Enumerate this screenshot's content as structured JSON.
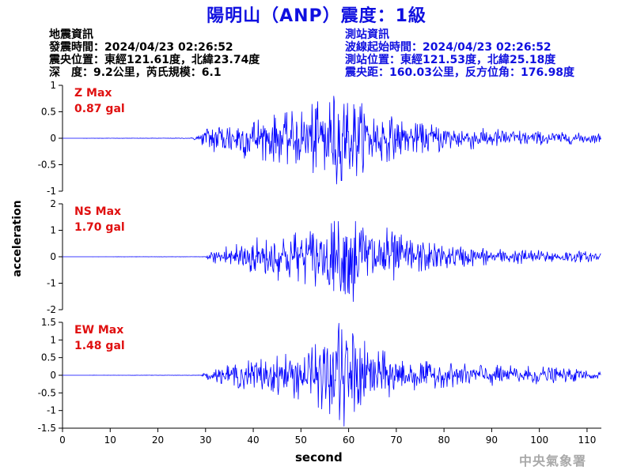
{
  "title": "陽明山（ANP）震度：1級",
  "earthquake_info": {
    "heading": "地震資訊",
    "origin_time": "發震時間：2024/04/23 02:26:52",
    "epicenter": "震央位置：東經121.61度，北緯23.74度",
    "depth_magnitude": "深　度：9.2公里，芮氏規模：6.1"
  },
  "station_info": {
    "heading": "測站資訊",
    "wave_start": "波線起始時間：2024/04/23 02:26:52",
    "station_location": "測站位置：東經121.53度，北緯25.18度",
    "distance_azimuth": "震央距：160.03公里，反方位角：176.98度"
  },
  "agency": "中央氣象署",
  "colors": {
    "title": "#1010e0",
    "trace": "#0000ff",
    "max_label": "#e01010"
  },
  "chart_data": {
    "type": "line",
    "xlabel": "second",
    "ylabel": "acceleration",
    "xlim": [
      0,
      113
    ],
    "xticks": [
      0,
      10,
      20,
      30,
      40,
      50,
      60,
      70,
      80,
      90,
      100,
      110
    ],
    "grid": false,
    "panels": [
      {
        "name": "Z Max",
        "max_value": "0.87 gal",
        "ylim": [
          -1,
          1
        ],
        "yticks": [
          -1,
          -0.5,
          0,
          0.5,
          1
        ],
        "envelope": [
          [
            0,
            0
          ],
          [
            27,
            0.005
          ],
          [
            29,
            0.1
          ],
          [
            31,
            0.3
          ],
          [
            35,
            0.35
          ],
          [
            40,
            0.4
          ],
          [
            45,
            0.45
          ],
          [
            50,
            0.55
          ],
          [
            56,
            0.8
          ],
          [
            60,
            0.8
          ],
          [
            64,
            0.6
          ],
          [
            68,
            0.45
          ],
          [
            72,
            0.3
          ],
          [
            80,
            0.25
          ],
          [
            90,
            0.18
          ],
          [
            100,
            0.13
          ],
          [
            110,
            0.1
          ],
          [
            113,
            0.09
          ]
        ],
        "peaks": [
          [
            56,
            0.68
          ],
          [
            57.5,
            -0.87
          ],
          [
            59,
            0.65
          ],
          [
            55,
            -0.6
          ]
        ]
      },
      {
        "name": "NS Max",
        "max_value": "1.70 gal",
        "ylim": [
          -2,
          2
        ],
        "yticks": [
          -2,
          -1,
          0,
          1,
          2
        ],
        "envelope": [
          [
            0,
            0
          ],
          [
            30,
            0.005
          ],
          [
            31,
            0.2
          ],
          [
            35,
            0.5
          ],
          [
            40,
            0.7
          ],
          [
            45,
            0.9
          ],
          [
            50,
            1.0
          ],
          [
            55,
            1.2
          ],
          [
            61,
            1.5
          ],
          [
            65,
            1.2
          ],
          [
            70,
            0.9
          ],
          [
            75,
            0.6
          ],
          [
            80,
            0.45
          ],
          [
            90,
            0.3
          ],
          [
            100,
            0.25
          ],
          [
            110,
            0.2
          ],
          [
            113,
            0.2
          ]
        ],
        "peaks": [
          [
            57,
            1.35
          ],
          [
            61,
            -1.7
          ],
          [
            63,
            1.1
          ],
          [
            59,
            -1.3
          ],
          [
            68,
            1.1
          ]
        ]
      },
      {
        "name": "EW Max",
        "max_value": "1.48 gal",
        "ylim": [
          -1.5,
          1.5
        ],
        "yticks": [
          -1.5,
          -1,
          -0.5,
          0,
          0.5,
          1,
          1.5
        ],
        "envelope": [
          [
            0,
            0
          ],
          [
            29,
            0.005
          ],
          [
            30,
            0.1
          ],
          [
            35,
            0.3
          ],
          [
            40,
            0.45
          ],
          [
            45,
            0.55
          ],
          [
            50,
            0.7
          ],
          [
            55,
            1.0
          ],
          [
            59,
            1.35
          ],
          [
            63,
            1.0
          ],
          [
            68,
            0.65
          ],
          [
            72,
            0.45
          ],
          [
            80,
            0.35
          ],
          [
            90,
            0.3
          ],
          [
            100,
            0.25
          ],
          [
            110,
            0.15
          ],
          [
            113,
            0.12
          ]
        ],
        "peaks": [
          [
            58,
            1.48
          ],
          [
            59,
            -1.45
          ],
          [
            56,
            -1.1
          ],
          [
            61,
            1.1
          ]
        ]
      }
    ]
  }
}
